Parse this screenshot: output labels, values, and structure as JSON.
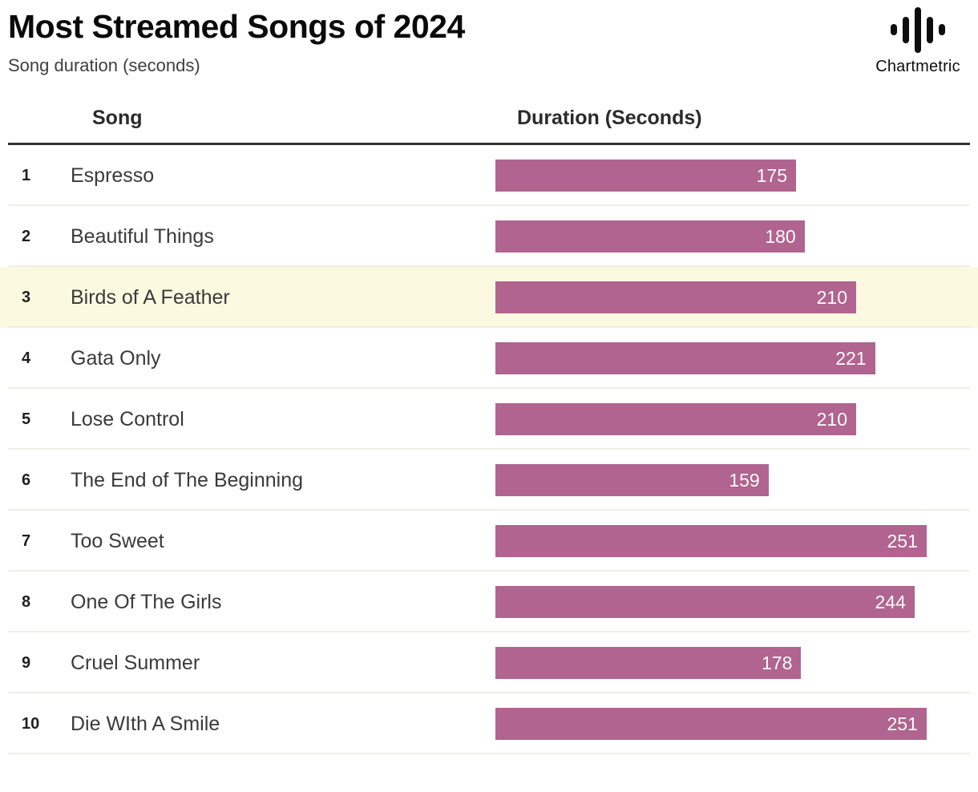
{
  "header": {
    "title": "Most Streamed Songs of 2024",
    "subtitle": "Song duration (seconds)",
    "brand": {
      "name": "Chartmetric",
      "logo_icon": "waveform-bars-icon"
    }
  },
  "table": {
    "columns": {
      "song": "Song",
      "duration": "Duration (Seconds)"
    },
    "highlighted_rank": 3,
    "rows": [
      {
        "rank": "1",
        "song": "Espresso",
        "duration": 175
      },
      {
        "rank": "2",
        "song": "Beautiful Things",
        "duration": 180
      },
      {
        "rank": "3",
        "song": "Birds of A Feather",
        "duration": 210
      },
      {
        "rank": "4",
        "song": "Gata Only",
        "duration": 221
      },
      {
        "rank": "5",
        "song": "Lose Control",
        "duration": 210
      },
      {
        "rank": "6",
        "song": "The End of The Beginning",
        "duration": 159
      },
      {
        "rank": "7",
        "song": "Too Sweet",
        "duration": 251
      },
      {
        "rank": "8",
        "song": "One Of The Girls",
        "duration": 244
      },
      {
        "rank": "9",
        "song": "Cruel Summer",
        "duration": 178
      },
      {
        "rank": "10",
        "song": "Die WIth A Smile",
        "duration": 251
      }
    ]
  },
  "chart_data": {
    "type": "bar",
    "orientation": "horizontal",
    "title": "Most Streamed Songs of 2024",
    "subtitle": "Song duration (seconds)",
    "categories": [
      "Espresso",
      "Beautiful Things",
      "Birds of A Feather",
      "Gata Only",
      "Lose Control",
      "The End of The Beginning",
      "Too Sweet",
      "One Of The Girls",
      "Cruel Summer",
      "Die WIth A Smile"
    ],
    "values": [
      175,
      180,
      210,
      221,
      210,
      159,
      251,
      244,
      178,
      251
    ],
    "xlabel": "Duration (Seconds)",
    "ylabel": "Song",
    "xlim": [
      0,
      251
    ],
    "grid": false,
    "legend": false,
    "data_labels": "inside-right",
    "highlighted_category": "Birds of A Feather"
  },
  "colors": {
    "bar": "#b0648f",
    "bar_label": "#fdfbfc",
    "highlight_row_bg": "#fcf9e1",
    "row_divider": "#efeee8",
    "header_rule": "#333333",
    "title_text": "#0a0a0a",
    "subtitle_text": "#3f3f3f",
    "body_text": "#3a3a3a"
  }
}
